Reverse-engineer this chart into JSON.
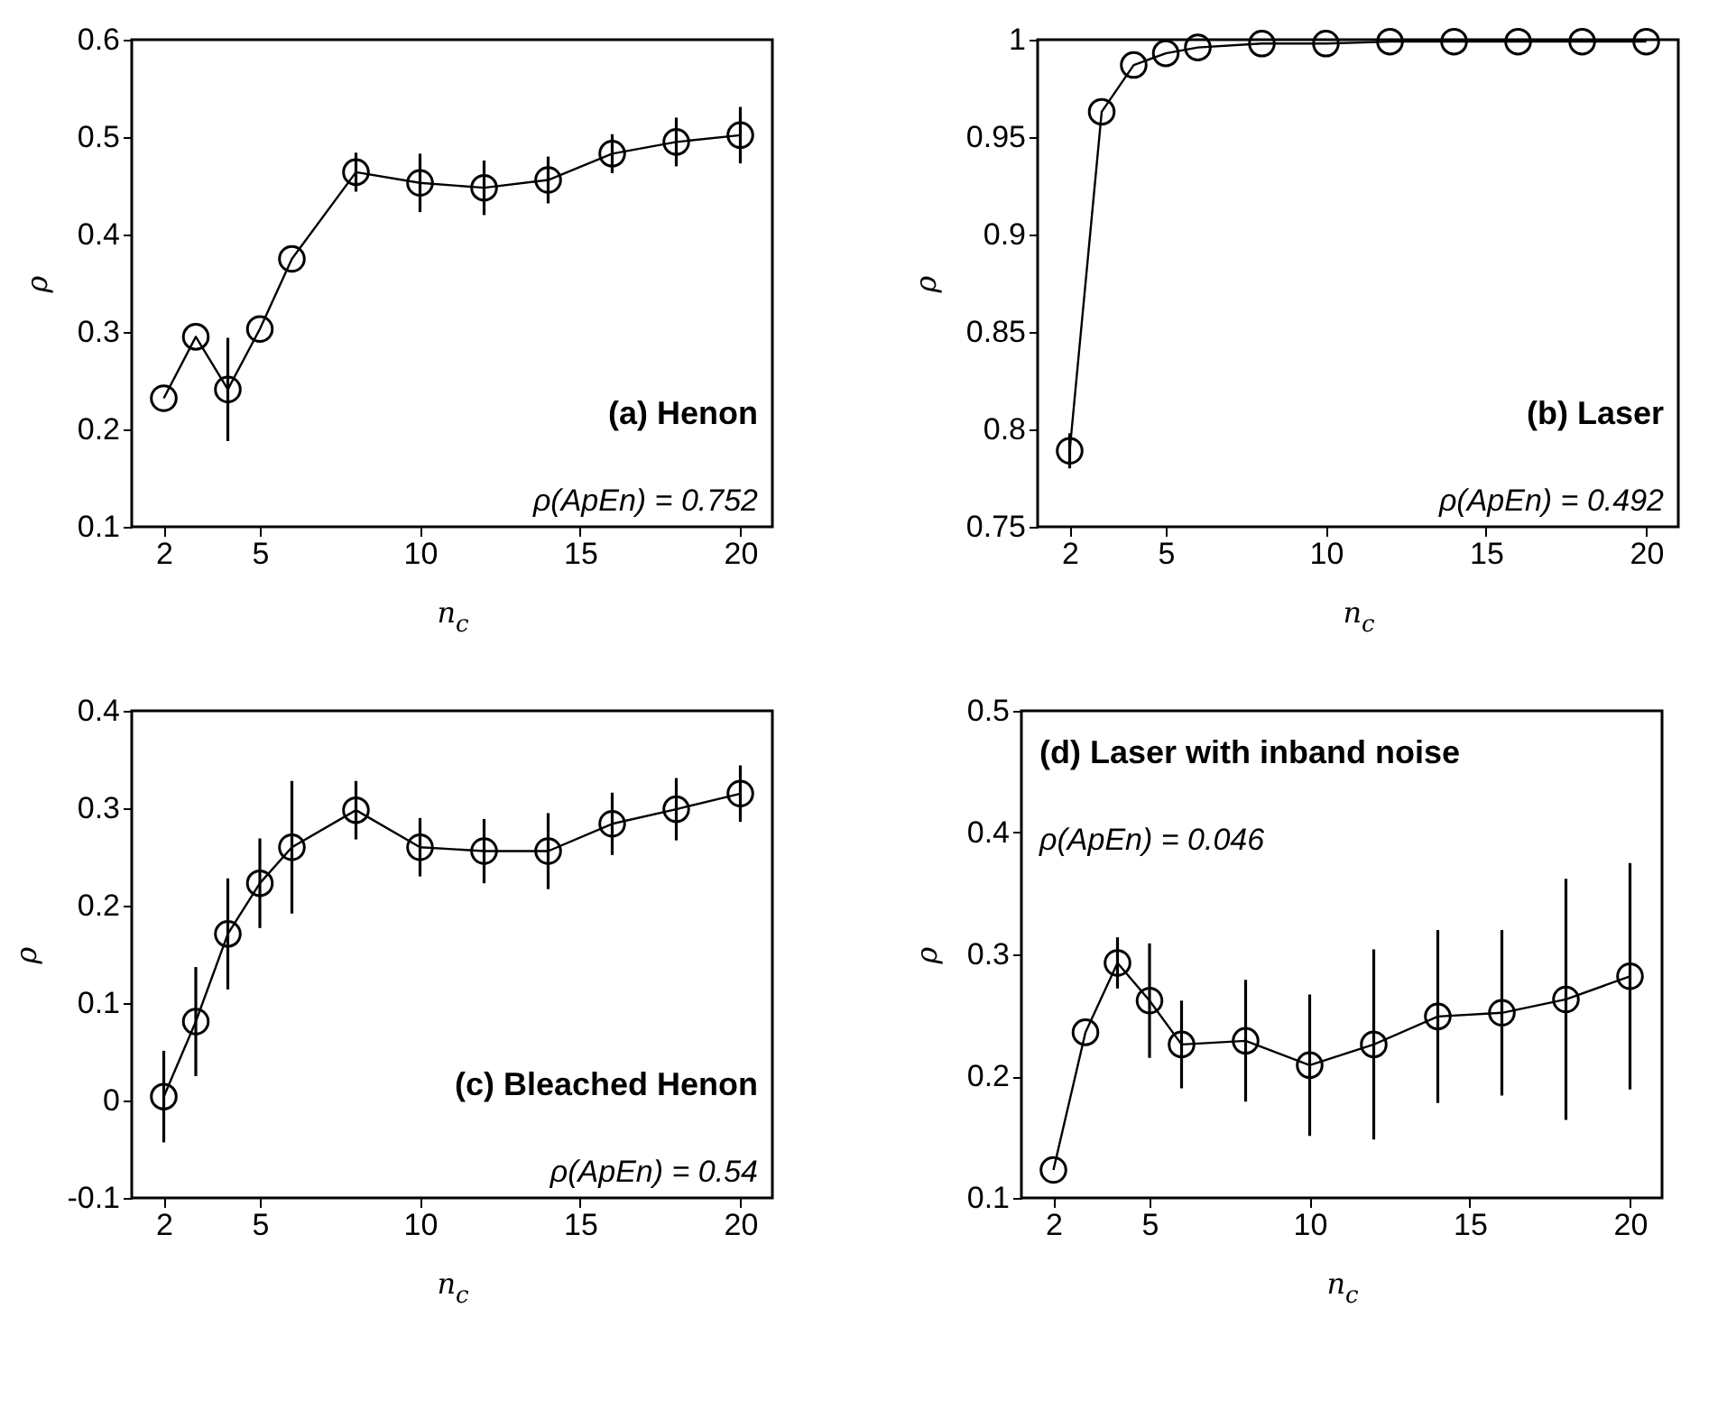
{
  "chart_data": [
    {
      "type": "line",
      "xlabel": "n$_{c}$",
      "ylabel": "ρ",
      "x": [
        2,
        3,
        4,
        5,
        6,
        8,
        10,
        12,
        14,
        16,
        18,
        20
      ],
      "xlim": [
        1,
        21
      ],
      "xticks": [
        2,
        5,
        10,
        15,
        20
      ],
      "ylim": [
        0.1,
        0.6
      ],
      "yticks": [
        0.1,
        0.2,
        0.3,
        0.4,
        0.5,
        0.6
      ],
      "marker": "circle",
      "grid": false,
      "series": [
        {
          "color": "#000000",
          "values": [
            0.232,
            0.295,
            0.241,
            0.303,
            0.375,
            0.464,
            0.453,
            0.448,
            0.456,
            0.483,
            0.495,
            0.502
          ],
          "errors": [
            null,
            null,
            0.053,
            null,
            null,
            0.02,
            0.03,
            0.028,
            0.024,
            0.02,
            0.025,
            0.029
          ]
        }
      ],
      "annotations": [
        "(a) Henon",
        "ρ(ApEn) = 0.752"
      ]
    },
    {
      "type": "line",
      "xlabel": "n$_{c}$",
      "ylabel": "ρ",
      "x": [
        2,
        3,
        4,
        5,
        6,
        8,
        10,
        12,
        14,
        16,
        18,
        20
      ],
      "xlim": [
        1,
        21
      ],
      "xticks": [
        2,
        5,
        10,
        15,
        20
      ],
      "ylim": [
        0.75,
        1
      ],
      "yticks": [
        0.75,
        0.8,
        0.85,
        0.9,
        0.95,
        1
      ],
      "marker": "circle",
      "grid": false,
      "series": [
        {
          "color": "#000000",
          "values": [
            0.789,
            0.963,
            0.987,
            0.993,
            0.996,
            0.998,
            0.998,
            0.999,
            0.999,
            0.999,
            0.999,
            0.999
          ],
          "errors": [
            0.009,
            null,
            null,
            null,
            null,
            null,
            null,
            null,
            null,
            null,
            null,
            null
          ]
        }
      ],
      "annotations": [
        "(b) Laser",
        "ρ(ApEn) = 0.492"
      ]
    },
    {
      "type": "line",
      "xlabel": "n$_{c}$",
      "ylabel": "ρ",
      "x": [
        2,
        3,
        4,
        5,
        6,
        8,
        10,
        12,
        14,
        16,
        18,
        20
      ],
      "xlim": [
        1,
        21
      ],
      "xticks": [
        2,
        5,
        10,
        15,
        20
      ],
      "ylim": [
        -0.1,
        0.4
      ],
      "yticks": [
        -0.1,
        0,
        0.1,
        0.2,
        0.3,
        0.4
      ],
      "marker": "circle",
      "grid": false,
      "series": [
        {
          "color": "#000000",
          "values": [
            0.004,
            0.081,
            0.171,
            0.223,
            0.26,
            0.298,
            0.26,
            0.256,
            0.256,
            0.284,
            0.299,
            0.315
          ],
          "errors": [
            0.047,
            0.056,
            0.057,
            0.046,
            0.068,
            0.03,
            0.03,
            0.033,
            0.039,
            0.032,
            0.032,
            0.029
          ]
        }
      ],
      "annotations": [
        "(c) Bleached Henon",
        "ρ(ApEn) = 0.54"
      ]
    },
    {
      "type": "line",
      "xlabel": "n$_{c}$",
      "ylabel": "ρ",
      "x": [
        2,
        3,
        4,
        5,
        6,
        8,
        10,
        12,
        14,
        16,
        18,
        20
      ],
      "xlim": [
        1,
        21
      ],
      "xticks": [
        2,
        5,
        10,
        15,
        20
      ],
      "ylim": [
        0.1,
        0.5
      ],
      "yticks": [
        0.1,
        0.2,
        0.3,
        0.4,
        0.5
      ],
      "marker": "circle",
      "grid": false,
      "series": [
        {
          "color": "#000000",
          "values": [
            0.123,
            0.236,
            0.293,
            0.262,
            0.226,
            0.229,
            0.209,
            0.226,
            0.249,
            0.252,
            0.263,
            0.282
          ],
          "errors": [
            null,
            null,
            0.021,
            0.047,
            0.036,
            0.05,
            0.058,
            0.078,
            0.071,
            0.068,
            0.099,
            0.093
          ]
        }
      ],
      "annotations": [
        "(d) Laser with inband noise",
        "ρ(ApEn) = 0.046"
      ]
    }
  ]
}
